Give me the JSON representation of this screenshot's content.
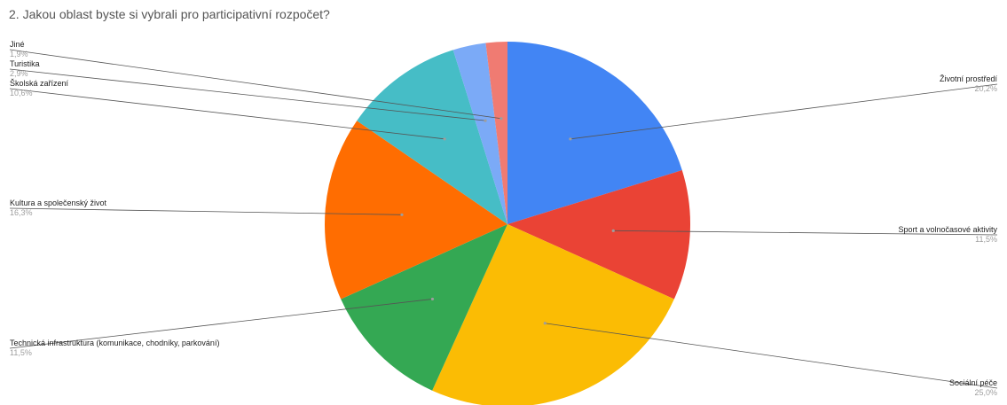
{
  "chart_data": {
    "type": "pie",
    "title": "2. Jakou oblast byste si vybrali pro participativní rozpočet?",
    "slices": [
      {
        "label": "Životní prostředí",
        "value": 20.2,
        "percent_label": "20,2%",
        "color": "#4285f4",
        "label_side": "right"
      },
      {
        "label": "Sport a volnočasové aktivity",
        "value": 11.5,
        "percent_label": "11,5%",
        "color": "#ea4335",
        "label_side": "right"
      },
      {
        "label": "Sociální péče",
        "value": 25.0,
        "percent_label": "25,0%",
        "color": "#fbbc04",
        "label_side": "right"
      },
      {
        "label": "Technická infrastruktura (komunikace, chodníky, parkování)",
        "value": 11.5,
        "percent_label": "11,5%",
        "color": "#34a853",
        "label_side": "left"
      },
      {
        "label": "Kultura a společenský život",
        "value": 16.3,
        "percent_label": "16,3%",
        "color": "#ff6d01",
        "label_side": "left"
      },
      {
        "label": "Školská zařízení",
        "value": 10.6,
        "percent_label": "10,6%",
        "color": "#46bdc6",
        "label_side": "left"
      },
      {
        "label": "Turistika",
        "value": 2.9,
        "percent_label": "2,9%",
        "color": "#7baaf7",
        "label_side": "left"
      },
      {
        "label": "Jiné",
        "value": 1.9,
        "percent_label": "1,9%",
        "color": "#f07b72",
        "label_side": "left"
      }
    ],
    "start": "12 o'clock",
    "direction": "clockwise",
    "legend": "leader-line labels"
  }
}
